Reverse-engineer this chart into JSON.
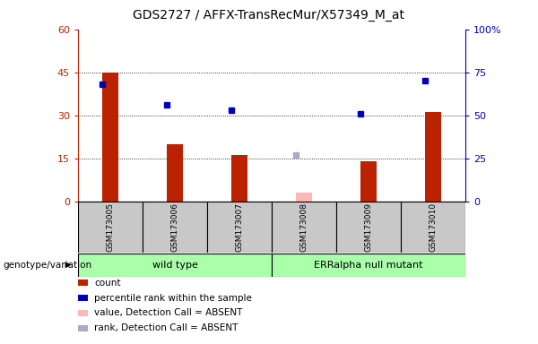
{
  "title": "GDS2727 / AFFX-TransRecMur/X57349_M_at",
  "samples": [
    "GSM173005",
    "GSM173006",
    "GSM173007",
    "GSM173008",
    "GSM173009",
    "GSM173010"
  ],
  "count_values": [
    45,
    20,
    16,
    null,
    14,
    31
  ],
  "count_absent": [
    null,
    null,
    null,
    3,
    null,
    null
  ],
  "rank_values": [
    68,
    56,
    53,
    null,
    51,
    70
  ],
  "rank_absent": [
    null,
    null,
    null,
    27,
    null,
    null
  ],
  "bar_color": "#BB2200",
  "bar_absent_color": "#FFB8B8",
  "dot_color": "#0000BB",
  "dot_absent_color": "#AAAACC",
  "ylim_left": [
    0,
    60
  ],
  "ylim_right": [
    0,
    100
  ],
  "yticks_left": [
    0,
    15,
    30,
    45,
    60
  ],
  "yticks_right": [
    0,
    25,
    50,
    75,
    100
  ],
  "group_labels": [
    "wild type",
    "ERRalpha null mutant"
  ],
  "group_ranges": [
    [
      0,
      3
    ],
    [
      3,
      6
    ]
  ],
  "group_color": "#AAFFAA",
  "sample_bg_color": "#C8C8C8",
  "legend_items": [
    {
      "label": "count",
      "color": "#BB2200",
      "type": "square"
    },
    {
      "label": "percentile rank within the sample",
      "color": "#0000BB",
      "type": "square"
    },
    {
      "label": "value, Detection Call = ABSENT",
      "color": "#FFB8B8",
      "type": "square"
    },
    {
      "label": "rank, Detection Call = ABSENT",
      "color": "#AAAACC",
      "type": "square"
    }
  ],
  "genotype_label": "genotype/variation"
}
